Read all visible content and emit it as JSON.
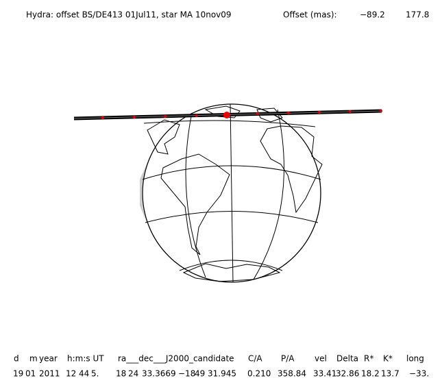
{
  "header": {
    "title": "Hydra: offset BS/DE413 01Jul11, star MA 10nov09",
    "offset_label": "Offset (mas):",
    "offset_ra": "−89.2",
    "offset_dec": "177.8"
  },
  "table": {
    "columns": [
      "d",
      "m",
      "year",
      "h:m:s UT",
      "ra___dec___J2000_candidate",
      "C/A",
      "P/A",
      "vel",
      "Delta",
      "R*",
      "K*",
      "long"
    ],
    "row": [
      "19",
      "01",
      "2011",
      "12",
      "44",
      "5.",
      "18",
      "24",
      "33.3669",
      "−18",
      "49",
      "31.945",
      "0.210",
      "358.84",
      "33.41",
      "32.86",
      "18.2",
      "13.7",
      "−33."
    ]
  }
}
